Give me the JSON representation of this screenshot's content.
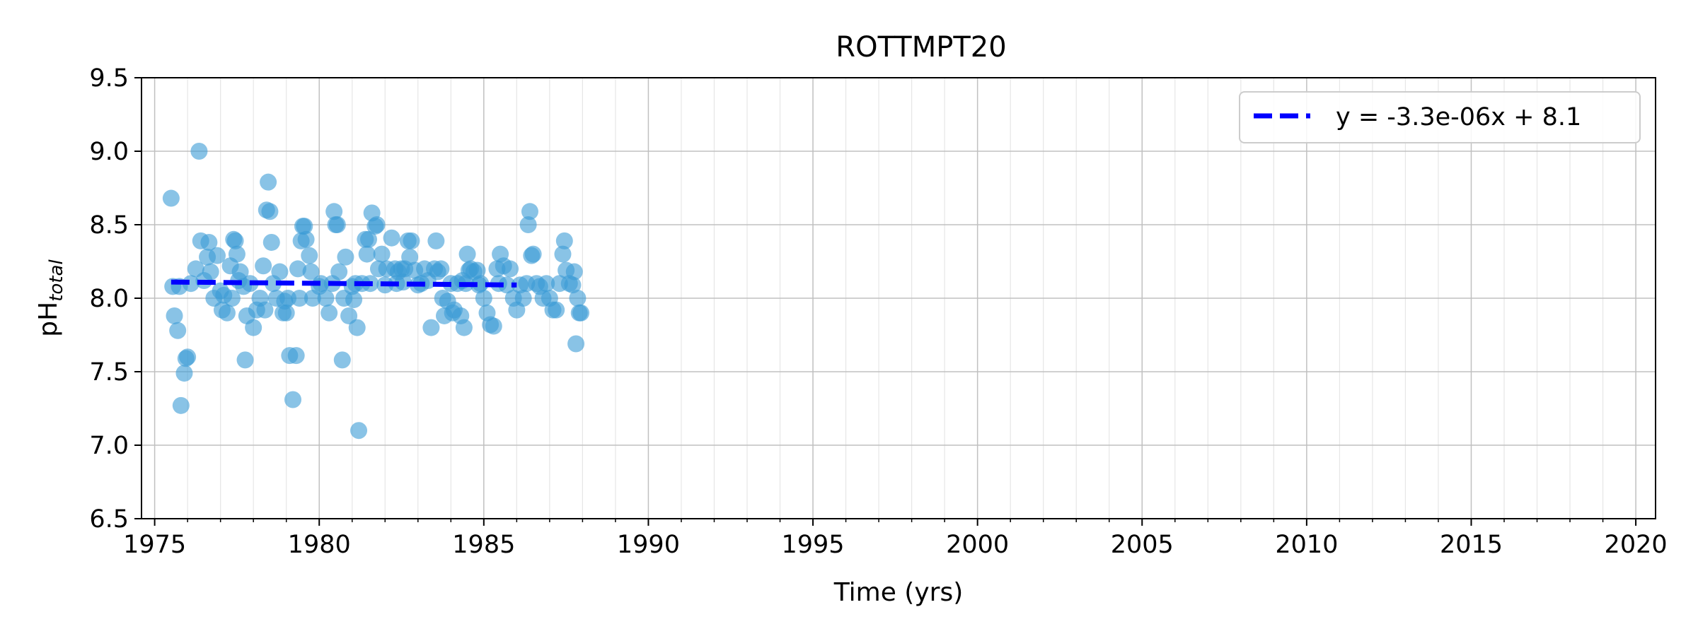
{
  "chart_data": {
    "type": "scatter",
    "title": "ROTTMPT20",
    "xlabel": "Time (yrs)",
    "ylabel": "pH",
    "ylabel_subscript": "total",
    "xlim": [
      1974.6,
      2020.6
    ],
    "ylim": [
      6.5,
      9.5
    ],
    "xticks": [
      1975,
      1980,
      1985,
      1990,
      1995,
      2000,
      2005,
      2010,
      2015,
      2020
    ],
    "yticks": [
      6.5,
      7.0,
      7.5,
      8.0,
      8.5,
      9.0,
      9.5
    ],
    "grid": true,
    "legend_position": "top-right",
    "colors": {
      "points": "#3b9bd6",
      "trend": "#0000ff"
    },
    "trend": {
      "label": "y = -3.3e-06x + 8.1",
      "x": [
        1975.5,
        1986.0
      ],
      "y": [
        8.11,
        8.09
      ]
    },
    "points": [
      [
        1975.5,
        8.68
      ],
      [
        1975.55,
        8.08
      ],
      [
        1975.6,
        7.88
      ],
      [
        1975.7,
        7.78
      ],
      [
        1975.75,
        8.08
      ],
      [
        1975.8,
        7.27
      ],
      [
        1975.9,
        7.49
      ],
      [
        1975.95,
        7.59
      ],
      [
        1976.0,
        7.6
      ],
      [
        1976.1,
        8.1
      ],
      [
        1976.25,
        8.2
      ],
      [
        1976.35,
        9.0
      ],
      [
        1976.4,
        8.39
      ],
      [
        1976.5,
        8.12
      ],
      [
        1976.6,
        8.28
      ],
      [
        1976.65,
        8.38
      ],
      [
        1976.7,
        8.18
      ],
      [
        1976.8,
        8.0
      ],
      [
        1976.9,
        8.29
      ],
      [
        1977.0,
        8.05
      ],
      [
        1977.05,
        7.92
      ],
      [
        1977.1,
        8.02
      ],
      [
        1977.2,
        7.9
      ],
      [
        1977.3,
        8.22
      ],
      [
        1977.35,
        8.0
      ],
      [
        1977.4,
        8.4
      ],
      [
        1977.45,
        8.39
      ],
      [
        1977.5,
        8.3
      ],
      [
        1977.55,
        8.12
      ],
      [
        1977.6,
        8.18
      ],
      [
        1977.7,
        8.08
      ],
      [
        1977.75,
        7.58
      ],
      [
        1977.8,
        7.88
      ],
      [
        1977.9,
        8.1
      ],
      [
        1978.0,
        7.8
      ],
      [
        1978.1,
        7.92
      ],
      [
        1978.2,
        8.0
      ],
      [
        1978.3,
        8.22
      ],
      [
        1978.35,
        7.92
      ],
      [
        1978.4,
        8.6
      ],
      [
        1978.45,
        8.79
      ],
      [
        1978.5,
        8.59
      ],
      [
        1978.55,
        8.38
      ],
      [
        1978.6,
        8.1
      ],
      [
        1978.7,
        8.0
      ],
      [
        1978.8,
        8.18
      ],
      [
        1978.9,
        7.9
      ],
      [
        1978.95,
        7.98
      ],
      [
        1979.0,
        7.9
      ],
      [
        1979.05,
        8.0
      ],
      [
        1979.1,
        7.61
      ],
      [
        1979.2,
        7.31
      ],
      [
        1979.3,
        7.61
      ],
      [
        1979.35,
        8.2
      ],
      [
        1979.4,
        8.0
      ],
      [
        1979.45,
        8.39
      ],
      [
        1979.5,
        8.49
      ],
      [
        1979.55,
        8.49
      ],
      [
        1979.6,
        8.4
      ],
      [
        1979.7,
        8.29
      ],
      [
        1979.75,
        8.18
      ],
      [
        1979.8,
        8.0
      ],
      [
        1980.0,
        8.08
      ],
      [
        1980.05,
        8.1
      ],
      [
        1980.2,
        8.0
      ],
      [
        1980.3,
        7.9
      ],
      [
        1980.4,
        8.1
      ],
      [
        1980.45,
        8.59
      ],
      [
        1980.5,
        8.5
      ],
      [
        1980.55,
        8.5
      ],
      [
        1980.6,
        8.18
      ],
      [
        1980.7,
        7.58
      ],
      [
        1980.75,
        8.0
      ],
      [
        1980.8,
        8.28
      ],
      [
        1980.9,
        7.88
      ],
      [
        1981.0,
        8.08
      ],
      [
        1981.05,
        7.99
      ],
      [
        1981.1,
        8.1
      ],
      [
        1981.15,
        7.8
      ],
      [
        1981.2,
        7.1
      ],
      [
        1981.3,
        8.1
      ],
      [
        1981.4,
        8.4
      ],
      [
        1981.45,
        8.3
      ],
      [
        1981.5,
        8.4
      ],
      [
        1981.55,
        8.1
      ],
      [
        1981.6,
        8.58
      ],
      [
        1981.7,
        8.49
      ],
      [
        1981.75,
        8.5
      ],
      [
        1981.8,
        8.2
      ],
      [
        1981.9,
        8.3
      ],
      [
        1982.0,
        8.09
      ],
      [
        1982.05,
        8.2
      ],
      [
        1982.2,
        8.41
      ],
      [
        1982.3,
        8.2
      ],
      [
        1982.35,
        8.1
      ],
      [
        1982.4,
        8.18
      ],
      [
        1982.5,
        8.2
      ],
      [
        1982.55,
        8.11
      ],
      [
        1982.6,
        8.2
      ],
      [
        1982.7,
        8.39
      ],
      [
        1982.75,
        8.28
      ],
      [
        1982.8,
        8.39
      ],
      [
        1982.9,
        8.19
      ],
      [
        1983.0,
        8.09
      ],
      [
        1983.1,
        8.1
      ],
      [
        1983.2,
        8.2
      ],
      [
        1983.3,
        8.12
      ],
      [
        1983.4,
        7.8
      ],
      [
        1983.5,
        8.2
      ],
      [
        1983.55,
        8.39
      ],
      [
        1983.6,
        8.18
      ],
      [
        1983.7,
        8.2
      ],
      [
        1983.75,
        8.0
      ],
      [
        1983.8,
        7.88
      ],
      [
        1983.9,
        7.98
      ],
      [
        1984.0,
        8.1
      ],
      [
        1984.05,
        7.9
      ],
      [
        1984.1,
        7.92
      ],
      [
        1984.2,
        8.1
      ],
      [
        1984.3,
        7.88
      ],
      [
        1984.35,
        8.12
      ],
      [
        1984.4,
        7.8
      ],
      [
        1984.45,
        8.1
      ],
      [
        1984.5,
        8.3
      ],
      [
        1984.55,
        8.19
      ],
      [
        1984.6,
        8.2
      ],
      [
        1984.7,
        8.18
      ],
      [
        1984.8,
        8.19
      ],
      [
        1984.85,
        8.09
      ],
      [
        1984.9,
        8.1
      ],
      [
        1985.0,
        8.0
      ],
      [
        1985.1,
        7.9
      ],
      [
        1985.2,
        7.82
      ],
      [
        1985.3,
        7.81
      ],
      [
        1985.4,
        8.2
      ],
      [
        1985.45,
        8.1
      ],
      [
        1985.5,
        8.3
      ],
      [
        1985.6,
        8.22
      ],
      [
        1985.7,
        8.09
      ],
      [
        1985.8,
        8.2
      ],
      [
        1985.9,
        8.0
      ],
      [
        1986.0,
        7.92
      ],
      [
        1986.1,
        8.09
      ],
      [
        1986.2,
        8.0
      ],
      [
        1986.3,
        8.1
      ],
      [
        1986.35,
        8.5
      ],
      [
        1986.4,
        8.59
      ],
      [
        1986.45,
        8.29
      ],
      [
        1986.5,
        8.3
      ],
      [
        1986.6,
        8.1
      ],
      [
        1986.7,
        8.08
      ],
      [
        1986.8,
        8.0
      ],
      [
        1986.9,
        8.1
      ],
      [
        1987.0,
        8.0
      ],
      [
        1987.1,
        7.92
      ],
      [
        1987.2,
        7.92
      ],
      [
        1987.3,
        8.1
      ],
      [
        1987.4,
        8.3
      ],
      [
        1987.45,
        8.39
      ],
      [
        1987.5,
        8.19
      ],
      [
        1987.6,
        8.1
      ],
      [
        1987.7,
        8.09
      ],
      [
        1987.75,
        8.18
      ],
      [
        1987.8,
        7.69
      ],
      [
        1987.85,
        8.0
      ],
      [
        1987.9,
        7.9
      ],
      [
        1987.95,
        7.9
      ]
    ]
  }
}
